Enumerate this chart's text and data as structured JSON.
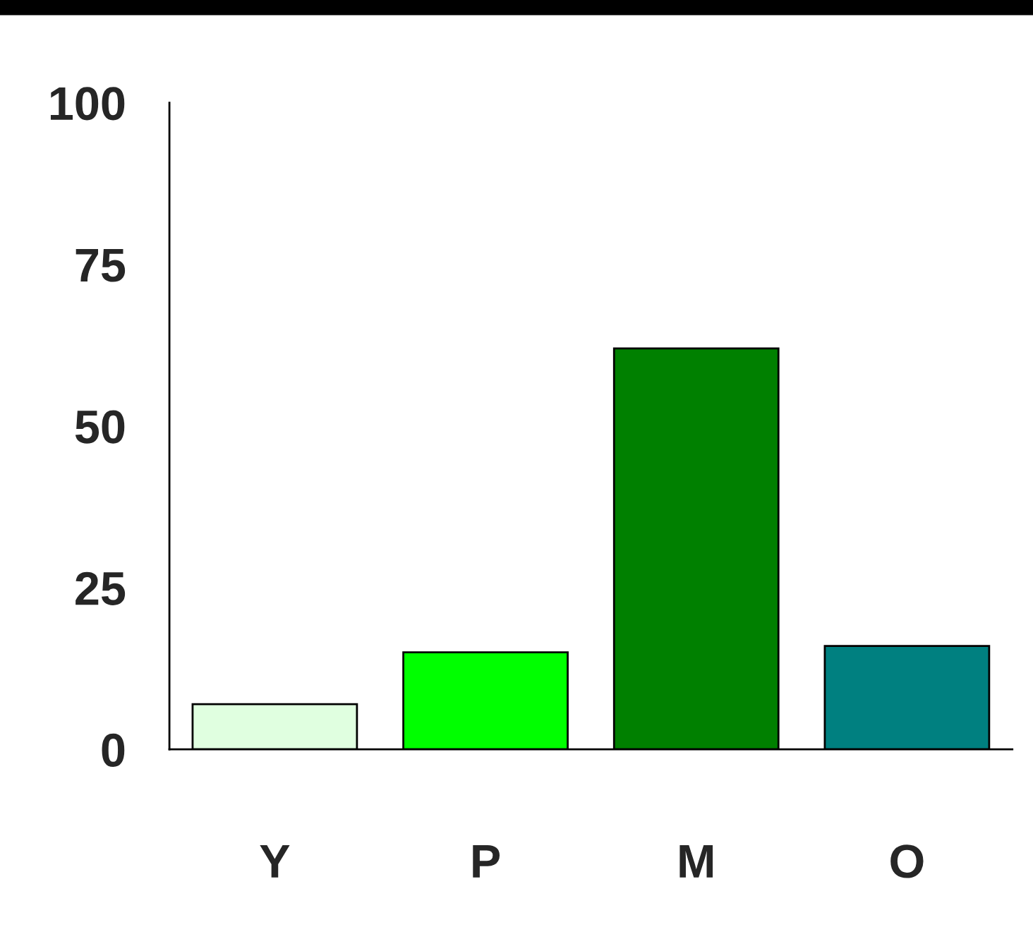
{
  "chart_data": {
    "type": "bar",
    "categories": [
      "Y",
      "P",
      "M",
      "O"
    ],
    "values": [
      7,
      15,
      62,
      16
    ],
    "colors": [
      "#e0ffe0",
      "#00ff00",
      "#008000",
      "#008080"
    ],
    "ylim": [
      0,
      100
    ],
    "yticks": [
      0,
      25,
      50,
      75,
      100
    ],
    "grid": false,
    "legend": false
  }
}
